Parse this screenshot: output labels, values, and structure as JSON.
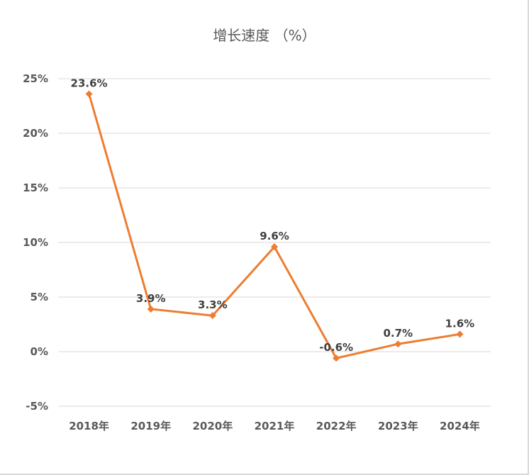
{
  "chart_data": {
    "type": "line",
    "title": "增长速度 （%）",
    "categories": [
      "2018年",
      "2019年",
      "2020年",
      "2021年",
      "2022年",
      "2023年",
      "2024年"
    ],
    "series": [
      {
        "name": "增长速度",
        "values": [
          23.6,
          3.9,
          3.3,
          9.6,
          -0.6,
          0.7,
          1.6
        ],
        "labels": [
          "23.6%",
          "3.9%",
          "3.3%",
          "9.6%",
          "-0.6%",
          "0.7%",
          "1.6%"
        ],
        "color": "#ED7D31",
        "marker": "diamond"
      }
    ],
    "yticks": [
      25,
      20,
      15,
      10,
      5,
      0,
      -5
    ],
    "ytick_labels": [
      "25%",
      "20%",
      "15%",
      "10%",
      "5%",
      "0%",
      "-5%"
    ],
    "ylim": [
      -5,
      25
    ],
    "grid": true,
    "xlabel": "",
    "ylabel": ""
  }
}
